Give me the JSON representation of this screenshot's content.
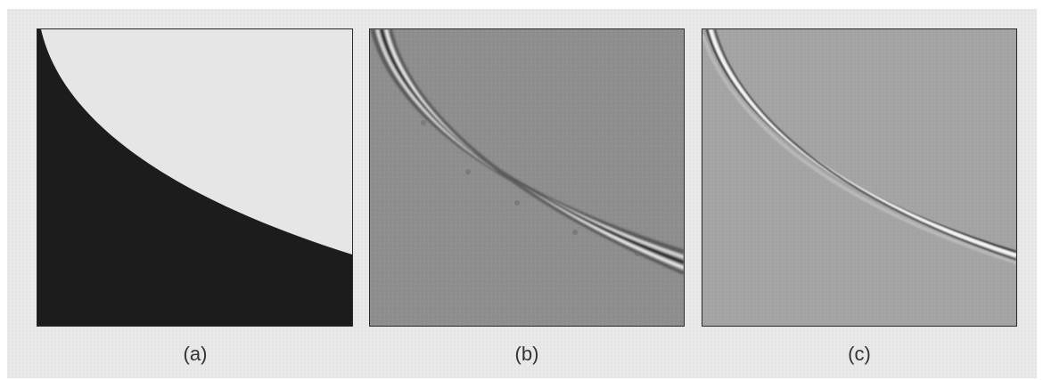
{
  "panels": [
    {
      "id": "a",
      "caption": "(a)",
      "content": "step-edge"
    },
    {
      "id": "b",
      "caption": "(b)",
      "content": "filtered-edge-noisy"
    },
    {
      "id": "c",
      "caption": "(c)",
      "content": "filtered-edge-smooth"
    }
  ],
  "colors": {
    "frame_background": "#e9e9e9",
    "dark_region": "#1c1c1c",
    "light_region": "#e6e6e6",
    "panel_b_background": "#8e8e8e",
    "panel_c_background": "#a4a4a4",
    "edge_highlight": "#f2f2f2",
    "edge_shadow": "#3a3a3a"
  }
}
